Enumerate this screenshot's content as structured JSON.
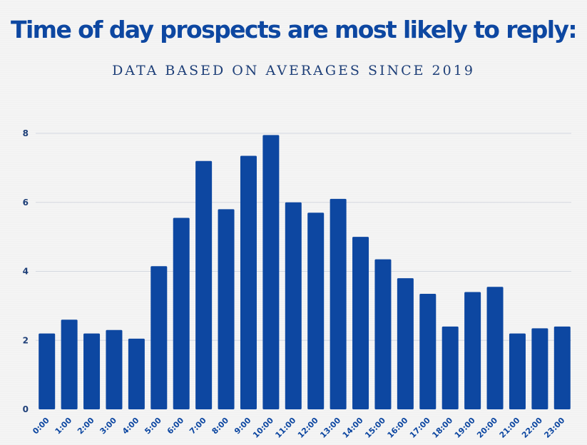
{
  "chart_data": {
    "type": "bar",
    "title": "Time of day prospects are most likely to reply:",
    "subtitle": "DATA BASED ON AVERAGES SINCE 2019",
    "xlabel": "",
    "ylabel": "",
    "categories": [
      "0:00",
      "1:00",
      "2:00",
      "3:00",
      "4:00",
      "5:00",
      "6:00",
      "7:00",
      "8:00",
      "9:00",
      "10:00",
      "11:00",
      "12:00",
      "13:00",
      "14:00",
      "15:00",
      "16:00",
      "17:00",
      "18:00",
      "19:00",
      "20:00",
      "21:00",
      "22:00",
      "23:00"
    ],
    "values": [
      2.2,
      2.6,
      2.2,
      2.3,
      2.05,
      4.15,
      5.55,
      7.2,
      5.8,
      7.35,
      7.95,
      6.0,
      5.7,
      6.1,
      5.0,
      4.35,
      3.8,
      3.35,
      2.4,
      3.4,
      3.55,
      2.2,
      2.35,
      2.4
    ],
    "ylim": [
      0,
      8
    ],
    "yticks": [
      0,
      2,
      4,
      6,
      8
    ],
    "grid": true,
    "legend": "none",
    "bar_color": "#0d47a1",
    "grid_color": "#d3d8e0"
  }
}
